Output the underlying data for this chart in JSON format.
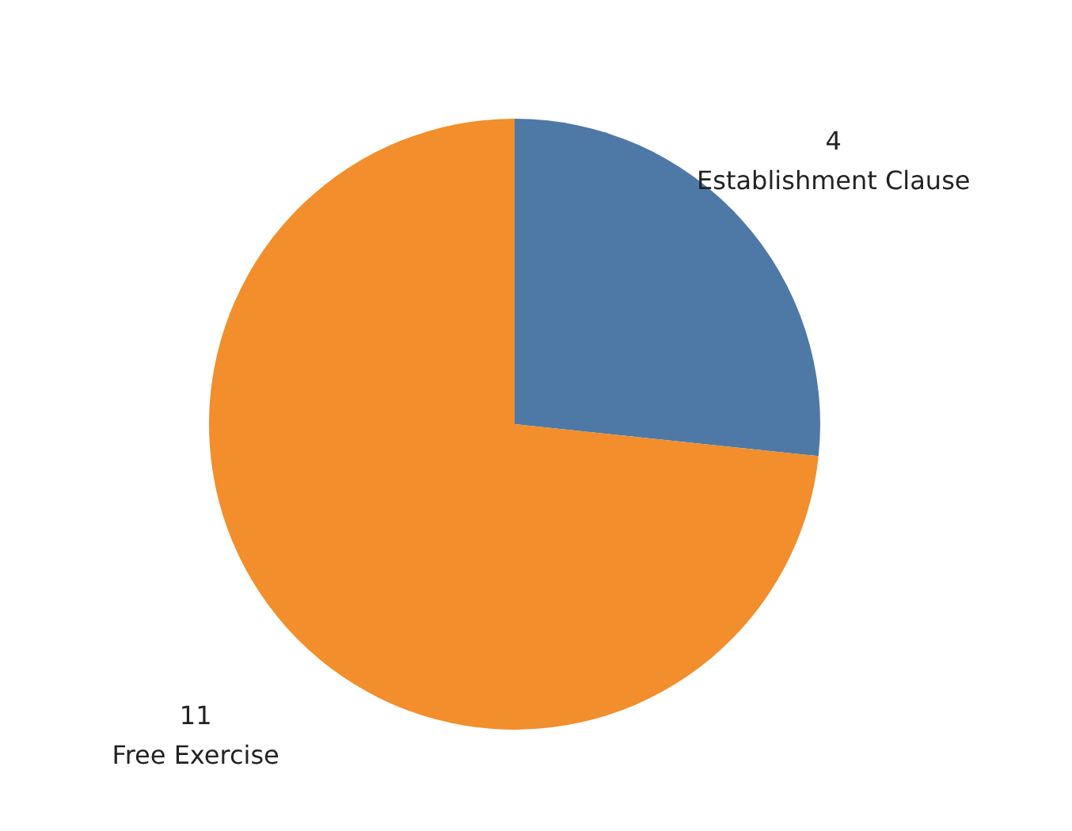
{
  "chart_data": {
    "type": "pie",
    "categories": [
      "Establishment Clause",
      "Free Exercise"
    ],
    "values": [
      4,
      11
    ],
    "colors": [
      "#4e79a7",
      "#f28e2b"
    ],
    "data_labels": true,
    "legend": false
  }
}
